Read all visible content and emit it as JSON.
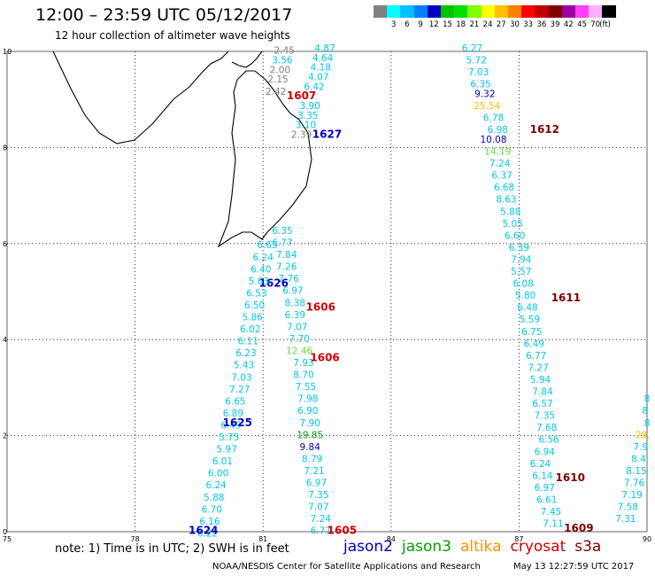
{
  "header": {
    "title": "12:00 – 23:59 UTC 05/12/2017",
    "subtitle": "12 hour collection of altimeter wave heights"
  },
  "legend": {
    "unit": "(ft)",
    "swatches": [
      {
        "color": "#808080",
        "label": ""
      },
      {
        "color": "#00ffff",
        "label": "3"
      },
      {
        "color": "#00bfff",
        "label": "6"
      },
      {
        "color": "#0080ff",
        "label": "9"
      },
      {
        "color": "#0000c0",
        "label": "12"
      },
      {
        "color": "#00c000",
        "label": "15"
      },
      {
        "color": "#00e000",
        "label": "18"
      },
      {
        "color": "#80ff00",
        "label": "21"
      },
      {
        "color": "#ffff00",
        "label": "24"
      },
      {
        "color": "#ffc000",
        "label": "27"
      },
      {
        "color": "#ff8000",
        "label": "30"
      },
      {
        "color": "#ff0000",
        "label": "33"
      },
      {
        "color": "#c00000",
        "label": "36"
      },
      {
        "color": "#800000",
        "label": "39"
      },
      {
        "color": "#a000a0",
        "label": "42"
      },
      {
        "color": "#ff40ff",
        "label": "45"
      },
      {
        "color": "#ffb0ff",
        "label": "70"
      },
      {
        "color": "#000000",
        "label": ""
      }
    ]
  },
  "map": {
    "lon_range": [
      75,
      90
    ],
    "lat_range": [
      0,
      10
    ],
    "x_ticks": [
      "75",
      "78",
      "81",
      "84",
      "87",
      "90"
    ],
    "y_ticks": [
      "0",
      "2",
      "4",
      "6",
      "8",
      "10"
    ],
    "grid": true
  },
  "tracks": [
    {
      "name": "track-1627-1607",
      "labels": [
        {
          "text": "1607",
          "color": "#d00000",
          "lon": 81.9,
          "lat": 9.0
        },
        {
          "text": "1627",
          "color": "#0000c0",
          "lon": 82.5,
          "lat": 8.2
        }
      ],
      "points": [
        {
          "lon": 82.45,
          "lat": 10.0,
          "v": "4.87",
          "c": "#00c8e8"
        },
        {
          "lon": 82.4,
          "lat": 9.8,
          "v": "4.64",
          "c": "#00c8e8"
        },
        {
          "lon": 82.35,
          "lat": 9.6,
          "v": "4.18",
          "c": "#00c8e8"
        },
        {
          "lon": 82.3,
          "lat": 9.4,
          "v": "4.07",
          "c": "#00c8e8"
        },
        {
          "lon": 82.2,
          "lat": 9.2,
          "v": "6.42",
          "c": "#00c8e8"
        },
        {
          "lon": 82.1,
          "lat": 8.8,
          "v": "3.90",
          "c": "#00c8e8"
        },
        {
          "lon": 82.05,
          "lat": 8.6,
          "v": "3.35",
          "c": "#00c8e8"
        },
        {
          "lon": 82.0,
          "lat": 8.4,
          "v": "3.10",
          "c": "#00c8e8"
        },
        {
          "lon": 81.9,
          "lat": 8.2,
          "v": "2.39",
          "c": "#808080"
        },
        {
          "lon": 81.5,
          "lat": 9.95,
          "v": "2.45",
          "c": "#808080"
        },
        {
          "lon": 81.45,
          "lat": 9.75,
          "v": "3.56",
          "c": "#00c8e8"
        },
        {
          "lon": 81.4,
          "lat": 9.55,
          "v": "2.00",
          "c": "#808080"
        },
        {
          "lon": 81.35,
          "lat": 9.35,
          "v": "2.15",
          "c": "#808080"
        },
        {
          "lon": 81.3,
          "lat": 9.1,
          "v": "2.42",
          "c": "#808080"
        }
      ]
    },
    {
      "name": "track-1612-1611",
      "labels": [
        {
          "text": "1612",
          "color": "#800000",
          "lon": 87.6,
          "lat": 8.3
        },
        {
          "text": "1611",
          "color": "#800000",
          "lon": 88.1,
          "lat": 4.8
        }
      ],
      "points": [
        {
          "lon": 85.9,
          "lat": 10.0,
          "v": "6.27",
          "c": "#00c8e8"
        },
        {
          "lon": 86.0,
          "lat": 9.75,
          "v": "5.72",
          "c": "#00c8e8"
        },
        {
          "lon": 86.05,
          "lat": 9.5,
          "v": "7.03",
          "c": "#00c8e8"
        },
        {
          "lon": 86.1,
          "lat": 9.25,
          "v": "6.35",
          "c": "#00c8e8"
        },
        {
          "lon": 86.2,
          "lat": 9.05,
          "v": "9.32",
          "c": "#0000c0"
        },
        {
          "lon": 86.25,
          "lat": 8.8,
          "v": "25.54",
          "c": "#ffc000"
        },
        {
          "lon": 86.4,
          "lat": 8.55,
          "v": "6.78",
          "c": "#00c8e8"
        },
        {
          "lon": 86.5,
          "lat": 8.3,
          "v": "6.98",
          "c": "#00c8e8"
        },
        {
          "lon": 86.4,
          "lat": 8.1,
          "v": "10.08",
          "c": "#0000c0"
        },
        {
          "lon": 86.5,
          "lat": 7.85,
          "v": "14.19",
          "c": "#60e040"
        },
        {
          "lon": 86.55,
          "lat": 7.6,
          "v": "7.24",
          "c": "#00c8e8"
        },
        {
          "lon": 86.6,
          "lat": 7.35,
          "v": "6.37",
          "c": "#00c8e8"
        },
        {
          "lon": 86.65,
          "lat": 7.1,
          "v": "6.68",
          "c": "#00c8e8"
        },
        {
          "lon": 86.7,
          "lat": 6.85,
          "v": "8.63",
          "c": "#00c8e8"
        },
        {
          "lon": 86.8,
          "lat": 6.6,
          "v": "5.88",
          "c": "#00c8e8"
        },
        {
          "lon": 86.85,
          "lat": 6.35,
          "v": "5.05",
          "c": "#00c8e8"
        },
        {
          "lon": 86.9,
          "lat": 6.1,
          "v": "6.60",
          "c": "#00c8e8"
        },
        {
          "lon": 87.0,
          "lat": 5.85,
          "v": "6.39",
          "c": "#00c8e8"
        },
        {
          "lon": 87.05,
          "lat": 5.6,
          "v": "7.94",
          "c": "#00c8e8"
        },
        {
          "lon": 87.05,
          "lat": 5.35,
          "v": "5.57",
          "c": "#00c8e8"
        },
        {
          "lon": 87.1,
          "lat": 5.1,
          "v": "6.08",
          "c": "#00c8e8"
        },
        {
          "lon": 87.15,
          "lat": 4.85,
          "v": "5.80",
          "c": "#00c8e8"
        },
        {
          "lon": 87.2,
          "lat": 4.6,
          "v": "6.48",
          "c": "#00c8e8"
        },
        {
          "lon": 87.25,
          "lat": 4.35,
          "v": "5.59",
          "c": "#00c8e8"
        },
        {
          "lon": 87.3,
          "lat": 4.1,
          "v": "6.75",
          "c": "#00c8e8"
        },
        {
          "lon": 87.35,
          "lat": 3.85,
          "v": "6.49",
          "c": "#00c8e8"
        },
        {
          "lon": 87.4,
          "lat": 3.6,
          "v": "6.77",
          "c": "#00c8e8"
        },
        {
          "lon": 87.45,
          "lat": 3.35,
          "v": "7.27",
          "c": "#00c8e8"
        },
        {
          "lon": 87.5,
          "lat": 3.1,
          "v": "5.94",
          "c": "#00c8e8"
        },
        {
          "lon": 87.55,
          "lat": 2.85,
          "v": "7.84",
          "c": "#00c8e8"
        },
        {
          "lon": 87.55,
          "lat": 2.6,
          "v": "6.57",
          "c": "#00c8e8"
        },
        {
          "lon": 87.6,
          "lat": 2.35,
          "v": "7.35",
          "c": "#00c8e8"
        },
        {
          "lon": 87.65,
          "lat": 2.1,
          "v": "7.68",
          "c": "#00c8e8"
        },
        {
          "lon": 87.7,
          "lat": 1.85,
          "v": "6.56",
          "c": "#00c8e8"
        }
      ]
    },
    {
      "name": "track-1610-1609",
      "labels": [
        {
          "text": "1610",
          "color": "#800000",
          "lon": 88.2,
          "lat": 1.05
        },
        {
          "text": "1609",
          "color": "#800000",
          "lon": 88.4,
          "lat": 0.0
        }
      ],
      "points": [
        {
          "lon": 87.6,
          "lat": 1.6,
          "v": "6.94",
          "c": "#00c8e8"
        },
        {
          "lon": 87.5,
          "lat": 1.35,
          "v": "6.24",
          "c": "#00c8e8"
        },
        {
          "lon": 87.55,
          "lat": 1.1,
          "v": "6.14",
          "c": "#00c8e8"
        },
        {
          "lon": 87.6,
          "lat": 0.85,
          "v": "6.97",
          "c": "#00c8e8"
        },
        {
          "lon": 87.65,
          "lat": 0.6,
          "v": "6.61",
          "c": "#00c8e8"
        },
        {
          "lon": 87.75,
          "lat": 0.35,
          "v": "7.45",
          "c": "#00c8e8"
        },
        {
          "lon": 87.8,
          "lat": 0.1,
          "v": "7.11",
          "c": "#00c8e8"
        },
        {
          "lon": 87.85,
          "lat": -0.15,
          "v": "5.92",
          "c": "#00c8e8"
        },
        {
          "lon": 87.6,
          "lat": -0.4,
          "v": "10.60",
          "c": "#0000c0"
        }
      ]
    },
    {
      "name": "track-east-edge",
      "labels": [],
      "points": [
        {
          "lon": 90.0,
          "lat": 2.7,
          "v": "8",
          "c": "#00c8e8"
        },
        {
          "lon": 89.95,
          "lat": 2.45,
          "v": "8",
          "c": "#00c8e8"
        },
        {
          "lon": 90.0,
          "lat": 2.2,
          "v": "8",
          "c": "#00c8e8"
        },
        {
          "lon": 89.9,
          "lat": 1.95,
          "v": "28.",
          "c": "#ffc000"
        },
        {
          "lon": 89.85,
          "lat": 1.7,
          "v": "7.9",
          "c": "#00c8e8"
        },
        {
          "lon": 89.8,
          "lat": 1.45,
          "v": "8.4",
          "c": "#00c8e8"
        },
        {
          "lon": 89.75,
          "lat": 1.2,
          "v": "8.15",
          "c": "#00c8e8"
        },
        {
          "lon": 89.7,
          "lat": 0.95,
          "v": "7.76",
          "c": "#00c8e8"
        },
        {
          "lon": 89.65,
          "lat": 0.7,
          "v": "7.19",
          "c": "#00c8e8"
        },
        {
          "lon": 89.55,
          "lat": 0.45,
          "v": "7.58",
          "c": "#00c8e8"
        },
        {
          "lon": 89.5,
          "lat": 0.2,
          "v": "7.31",
          "c": "#00c8e8"
        }
      ]
    },
    {
      "name": "track-1626-1606",
      "labels": [
        {
          "text": "1626",
          "color": "#0000c0",
          "lon": 81.25,
          "lat": 5.1
        },
        {
          "text": "1606",
          "color": "#d00000",
          "lon": 82.35,
          "lat": 4.6
        },
        {
          "text": "1606",
          "color": "#d00000",
          "lon": 82.45,
          "lat": 3.55
        },
        {
          "text": "1605",
          "color": "#d00000",
          "lon": 82.85,
          "lat": -0.05
        }
      ],
      "points": [
        {
          "lon": 81.45,
          "lat": 6.2,
          "v": "6.35",
          "c": "#00c8e8"
        },
        {
          "lon": 81.45,
          "lat": 5.95,
          "v": "6.77",
          "c": "#00c8e8"
        },
        {
          "lon": 81.55,
          "lat": 5.7,
          "v": "7.84",
          "c": "#00c8e8"
        },
        {
          "lon": 81.55,
          "lat": 5.45,
          "v": "7.26",
          "c": "#00c8e8"
        },
        {
          "lon": 81.6,
          "lat": 5.2,
          "v": "7.76",
          "c": "#00c8e8"
        },
        {
          "lon": 81.7,
          "lat": 4.95,
          "v": "6.97",
          "c": "#00c8e8"
        },
        {
          "lon": 81.75,
          "lat": 4.7,
          "v": "8.38",
          "c": "#00c8e8"
        },
        {
          "lon": 81.75,
          "lat": 4.45,
          "v": "6.39",
          "c": "#00c8e8"
        },
        {
          "lon": 81.8,
          "lat": 4.2,
          "v": "7.07",
          "c": "#00c8e8"
        },
        {
          "lon": 81.85,
          "lat": 3.95,
          "v": "7.70",
          "c": "#00c8e8"
        },
        {
          "lon": 81.85,
          "lat": 3.7,
          "v": "12.46",
          "c": "#60e040"
        },
        {
          "lon": 81.95,
          "lat": 3.45,
          "v": "7.93",
          "c": "#00c8e8"
        },
        {
          "lon": 81.95,
          "lat": 3.2,
          "v": "8.70",
          "c": "#00c8e8"
        },
        {
          "lon": 82.0,
          "lat": 2.95,
          "v": "7.55",
          "c": "#00c8e8"
        },
        {
          "lon": 82.05,
          "lat": 2.7,
          "v": "7.98",
          "c": "#00c8e8"
        },
        {
          "lon": 82.05,
          "lat": 2.45,
          "v": "6.90",
          "c": "#00c8e8"
        },
        {
          "lon": 82.1,
          "lat": 2.2,
          "v": "7.90",
          "c": "#00c8e8"
        },
        {
          "lon": 82.1,
          "lat": 1.95,
          "v": "19.85",
          "c": "#00a000"
        },
        {
          "lon": 82.1,
          "lat": 1.7,
          "v": "9.84",
          "c": "#0000c0"
        },
        {
          "lon": 82.15,
          "lat": 1.45,
          "v": "8.79",
          "c": "#00c8e8"
        },
        {
          "lon": 82.2,
          "lat": 1.2,
          "v": "7.21",
          "c": "#00c8e8"
        },
        {
          "lon": 82.25,
          "lat": 0.95,
          "v": "6.97",
          "c": "#00c8e8"
        },
        {
          "lon": 82.3,
          "lat": 0.7,
          "v": "7.35",
          "c": "#00c8e8"
        },
        {
          "lon": 82.3,
          "lat": 0.45,
          "v": "7.07",
          "c": "#00c8e8"
        },
        {
          "lon": 82.35,
          "lat": 0.2,
          "v": "7.24",
          "c": "#00c8e8"
        },
        {
          "lon": 82.35,
          "lat": -0.05,
          "v": "6.77",
          "c": "#00c8e8"
        },
        {
          "lon": 82.4,
          "lat": -0.3,
          "v": "7.76",
          "c": "#00c8e8"
        }
      ]
    },
    {
      "name": "track-1625-1624",
      "labels": [
        {
          "text": "1625",
          "color": "#0000c0",
          "lon": 80.4,
          "lat": 2.2
        },
        {
          "text": "1624",
          "color": "#0000c0",
          "lon": 79.6,
          "lat": -0.05
        }
      ],
      "points": [
        {
          "lon": 81.1,
          "lat": 5.9,
          "v": "6.65",
          "c": "#00c8e8"
        },
        {
          "lon": 81.0,
          "lat": 5.65,
          "v": "6.24",
          "c": "#00c8e8"
        },
        {
          "lon": 80.95,
          "lat": 5.4,
          "v": "6.40",
          "c": "#00c8e8"
        },
        {
          "lon": 80.9,
          "lat": 5.15,
          "v": "5.63",
          "c": "#00c8e8"
        },
        {
          "lon": 80.85,
          "lat": 4.9,
          "v": "6.53",
          "c": "#00c8e8"
        },
        {
          "lon": 80.8,
          "lat": 4.65,
          "v": "6.50",
          "c": "#00c8e8"
        },
        {
          "lon": 80.75,
          "lat": 4.4,
          "v": "5.86",
          "c": "#00c8e8"
        },
        {
          "lon": 80.7,
          "lat": 4.15,
          "v": "6.02",
          "c": "#00c8e8"
        },
        {
          "lon": 80.65,
          "lat": 3.9,
          "v": "6.11",
          "c": "#00c8e8"
        },
        {
          "lon": 80.6,
          "lat": 3.65,
          "v": "6.23",
          "c": "#00c8e8"
        },
        {
          "lon": 80.55,
          "lat": 3.4,
          "v": "5.43",
          "c": "#00c8e8"
        },
        {
          "lon": 80.5,
          "lat": 3.15,
          "v": "7.03",
          "c": "#00c8e8"
        },
        {
          "lon": 80.45,
          "lat": 2.9,
          "v": "7.27",
          "c": "#00c8e8"
        },
        {
          "lon": 80.35,
          "lat": 2.65,
          "v": "6.65",
          "c": "#00c8e8"
        },
        {
          "lon": 80.3,
          "lat": 2.4,
          "v": "6.89",
          "c": "#00c8e8"
        },
        {
          "lon": 80.25,
          "lat": 2.15,
          "v": "6.49",
          "c": "#00c8e8"
        },
        {
          "lon": 80.2,
          "lat": 1.9,
          "v": "5.75",
          "c": "#00c8e8"
        },
        {
          "lon": 80.15,
          "lat": 1.65,
          "v": "5.97",
          "c": "#00c8e8"
        },
        {
          "lon": 80.05,
          "lat": 1.4,
          "v": "6.01",
          "c": "#00c8e8"
        },
        {
          "lon": 79.95,
          "lat": 1.15,
          "v": "6.00",
          "c": "#00c8e8"
        },
        {
          "lon": 79.9,
          "lat": 0.9,
          "v": "6.24",
          "c": "#00c8e8"
        },
        {
          "lon": 79.85,
          "lat": 0.65,
          "v": "5.88",
          "c": "#00c8e8"
        },
        {
          "lon": 79.8,
          "lat": 0.4,
          "v": "6.70",
          "c": "#00c8e8"
        },
        {
          "lon": 79.75,
          "lat": 0.15,
          "v": "6.16",
          "c": "#00c8e8"
        },
        {
          "lon": 79.7,
          "lat": -0.1,
          "v": "6.22",
          "c": "#00c8e8"
        },
        {
          "lon": 79.65,
          "lat": -0.35,
          "v": "6.04",
          "c": "#00c8e8"
        },
        {
          "lon": 79.6,
          "lat": -0.6,
          "v": "6.63",
          "c": "#00c8e8"
        },
        {
          "lon": 79.5,
          "lat": -0.85,
          "v": "5.83",
          "c": "#00c8e8"
        },
        {
          "lon": 79.4,
          "lat": -1.1,
          "v": "6.01",
          "c": "#00c8e8"
        }
      ]
    }
  ],
  "footer": {
    "note": "note: 1) Time is in UTC; 2) SWH is in feet",
    "satellites": [
      {
        "name": "jason2",
        "color": "#0000c0"
      },
      {
        "name": "jason3",
        "color": "#00a000"
      },
      {
        "name": "altika",
        "color": "#ff9000"
      },
      {
        "name": "cryosat",
        "color": "#d00000"
      },
      {
        "name": "s3a",
        "color": "#800000"
      }
    ],
    "credit": "NOAA/NESDIS Center for Satellite Applications and Research",
    "timestamp": "May 13 12:27:59 UTC 2017"
  }
}
